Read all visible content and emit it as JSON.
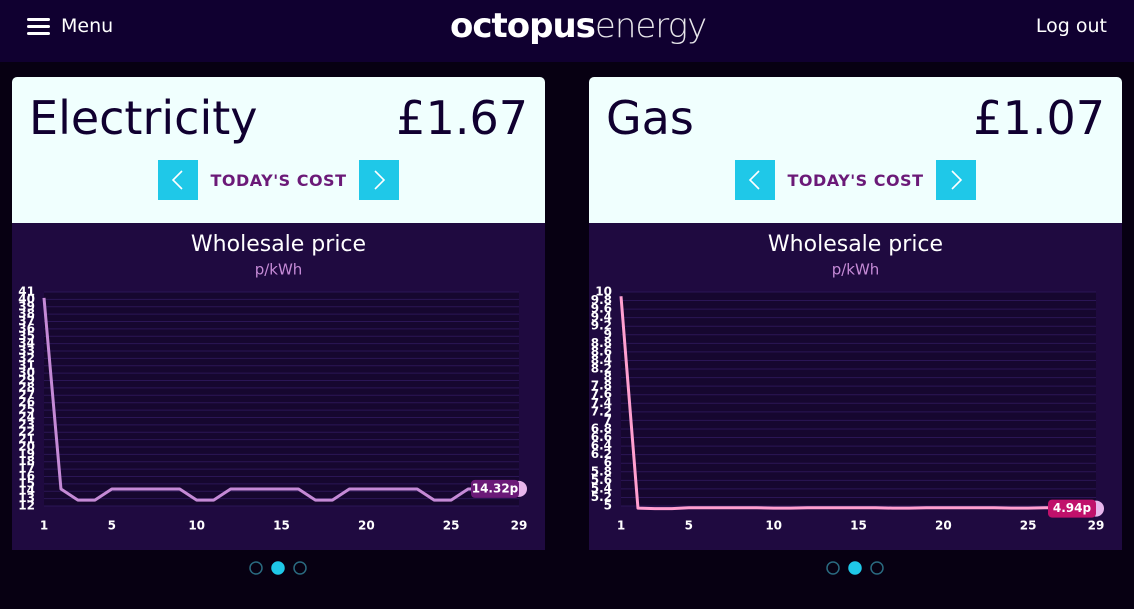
{
  "header": {
    "menu": "Menu",
    "logo_bold": "octopus",
    "logo_light": "energy",
    "logout": "Log out"
  },
  "panels": [
    {
      "title": "Electricity",
      "cost": "£1.67",
      "cost_label": "TODAY'S COST"
    },
    {
      "title": "Gas",
      "cost": "£1.07",
      "cost_label": "TODAY'S COST"
    }
  ],
  "chart_data": [
    {
      "type": "line",
      "title": "Wholesale price",
      "subtitle": "p/kWh",
      "x": [
        1,
        2,
        3,
        4,
        5,
        6,
        7,
        8,
        9,
        10,
        11,
        12,
        13,
        14,
        15,
        16,
        17,
        18,
        19,
        20,
        21,
        22,
        23,
        24,
        25,
        26,
        27,
        28,
        29
      ],
      "series": [
        {
          "color": "#c58ad6",
          "label_color": "#6b1a78",
          "values": [
            40.2,
            14.3,
            12.8,
            12.8,
            14.3,
            14.3,
            14.3,
            14.3,
            14.3,
            12.8,
            12.8,
            14.3,
            14.3,
            14.3,
            14.3,
            14.3,
            12.8,
            12.8,
            14.3,
            14.3,
            14.3,
            14.3,
            14.3,
            12.8,
            12.8,
            14.3,
            14.3,
            14.3,
            14.32
          ],
          "value_labels": [
            null,
            null,
            null,
            null,
            null,
            null,
            null,
            null,
            null,
            null,
            null,
            null,
            null,
            null,
            null,
            null,
            null,
            null,
            null,
            null,
            null,
            null,
            null,
            null,
            null,
            null,
            null,
            null,
            "14.32p"
          ]
        }
      ],
      "xlim": [
        1,
        29
      ],
      "xticks": [
        1,
        5,
        10,
        15,
        20,
        25,
        29
      ],
      "ylim": [
        12,
        41
      ],
      "yticks": [
        12,
        13,
        14,
        15,
        16,
        17,
        18,
        19,
        20,
        21,
        22,
        23,
        24,
        25,
        26,
        27,
        28,
        29,
        30,
        31,
        32,
        33,
        34,
        35,
        36,
        37,
        38,
        39,
        40,
        41
      ],
      "grid": true
    },
    {
      "type": "line",
      "title": "Wholesale price",
      "subtitle": "p/kWh",
      "x": [
        1,
        2,
        3,
        4,
        5,
        6,
        7,
        8,
        9,
        10,
        11,
        12,
        13,
        14,
        15,
        16,
        17,
        18,
        19,
        20,
        21,
        22,
        23,
        24,
        25,
        26,
        27,
        28,
        29
      ],
      "series": [
        {
          "color": "#ff9fcf",
          "label_color": "#c0116b",
          "values": [
            9.9,
            4.95,
            4.94,
            4.94,
            4.96,
            4.96,
            4.96,
            4.96,
            4.96,
            4.95,
            4.95,
            4.96,
            4.96,
            4.96,
            4.96,
            4.96,
            4.95,
            4.95,
            4.96,
            4.96,
            4.96,
            4.96,
            4.96,
            4.95,
            4.95,
            4.96,
            4.96,
            4.96,
            4.94
          ],
          "value_labels": [
            null,
            null,
            null,
            null,
            null,
            null,
            null,
            null,
            null,
            null,
            null,
            null,
            null,
            null,
            null,
            null,
            null,
            null,
            null,
            null,
            null,
            null,
            null,
            null,
            null,
            null,
            null,
            null,
            "4.94p"
          ]
        }
      ],
      "xlim": [
        1,
        29
      ],
      "xticks": [
        1,
        5,
        10,
        15,
        20,
        25,
        29
      ],
      "ylim": [
        5,
        10
      ],
      "yticks": [
        5,
        5.2,
        5.4,
        5.6,
        5.8,
        6,
        6.2,
        6.4,
        6.6,
        6.8,
        7,
        7.2,
        7.4,
        7.6,
        7.8,
        8,
        8.2,
        8.4,
        8.6,
        8.8,
        9,
        9.2,
        9.4,
        9.6,
        9.8,
        10
      ],
      "grid": true
    }
  ]
}
